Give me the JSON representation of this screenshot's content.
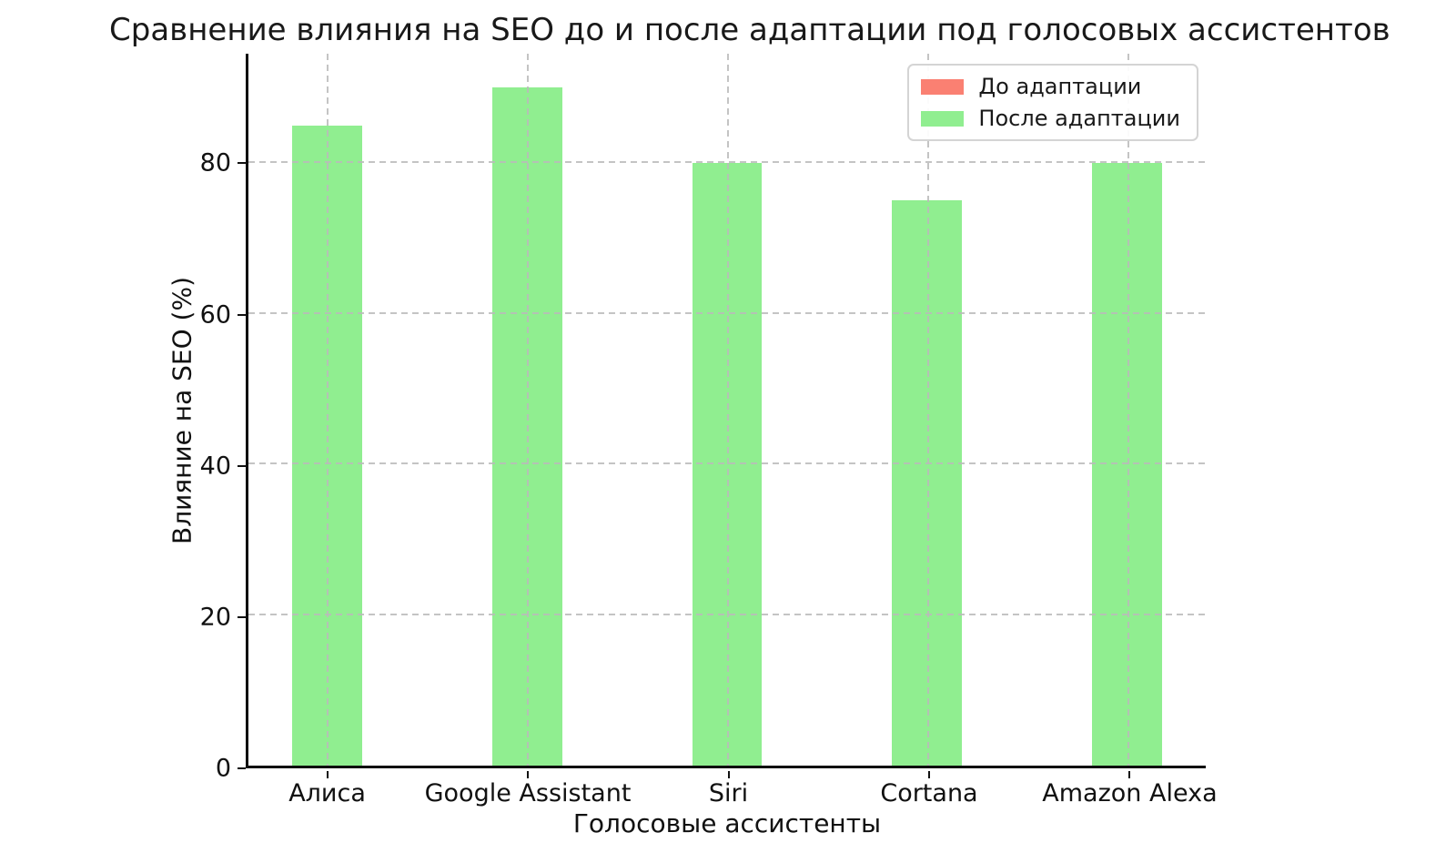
{
  "chart_data": {
    "type": "bar",
    "title": "Сравнение влияния на SEO до и после адаптации под голосовых ассистентов",
    "xlabel": "Голосовые ассистенты",
    "ylabel": "Влияние на SEO (%)",
    "categories": [
      "Алиса",
      "Google Assistant",
      "Siri",
      "Cortana",
      "Amazon Alexa"
    ],
    "series": [
      {
        "name": "До адаптации",
        "color": "#fa8072",
        "values": null,
        "visible_in_plot": false,
        "note": "No red bars are visible in the plot; they are fully hidden behind the 'После адаптации' bars drawn at the same x positions."
      },
      {
        "name": "После адаптации",
        "color": "#90ee90",
        "values": [
          85,
          90,
          80,
          75,
          80
        ],
        "visible_in_plot": true
      }
    ],
    "ylim": [
      0,
      94.5
    ],
    "yticks": [
      0,
      20,
      40,
      60,
      80
    ],
    "grid": {
      "horizontal": true,
      "vertical": true,
      "style": "dashed",
      "color": "#bababa",
      "drawn_above_bars": true
    },
    "legend": {
      "position": "upper right"
    },
    "background": "#ffffff",
    "axis_color": "#0d0d0d"
  }
}
